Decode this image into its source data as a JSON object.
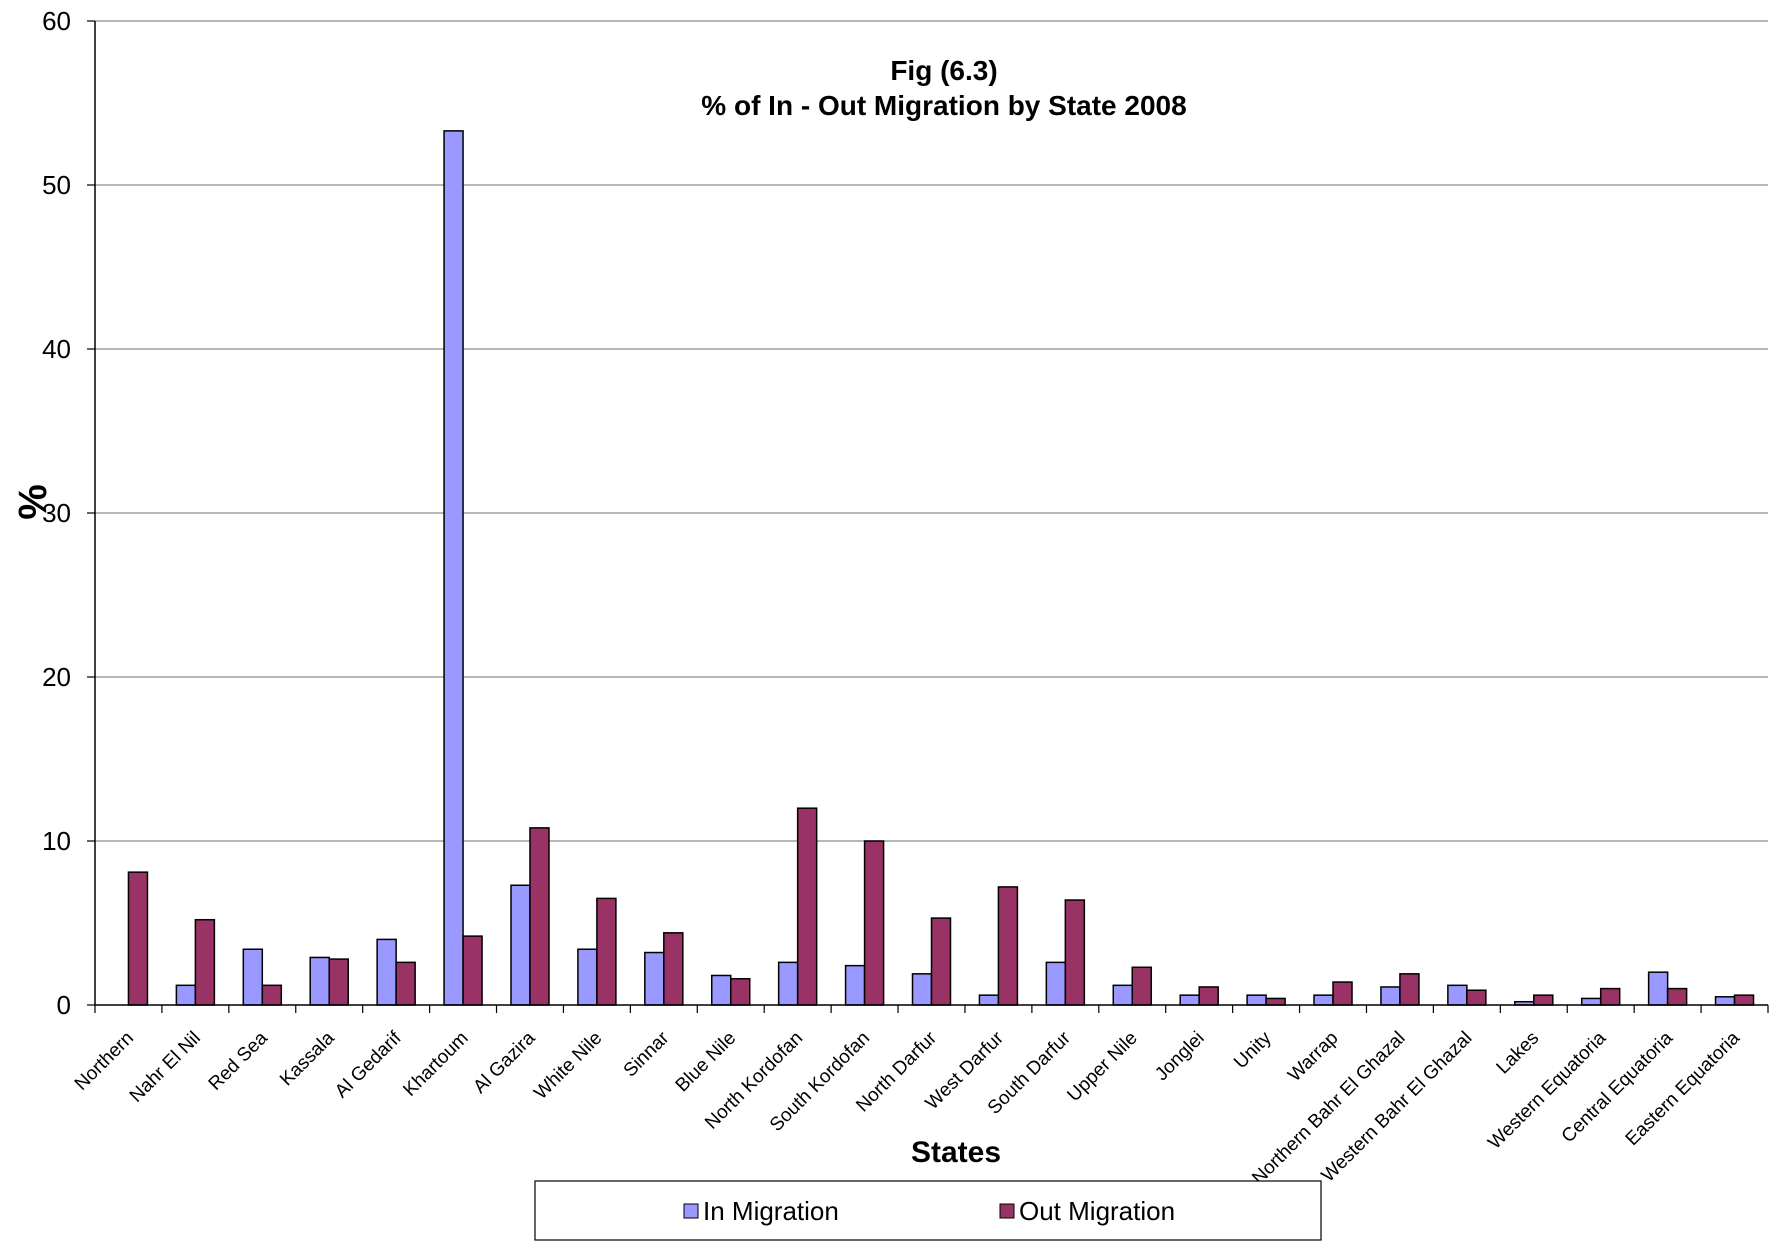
{
  "chart_data": {
    "type": "bar",
    "title_lines": [
      "Fig (6.3)",
      "% of In - Out Migration by State 2008"
    ],
    "xlabel": "States",
    "ylabel": "%",
    "ylim": [
      0,
      60
    ],
    "yticks": [
      0,
      10,
      20,
      30,
      40,
      50,
      60
    ],
    "grid": true,
    "legend_position": "bottom",
    "categories": [
      "Northern",
      "Nahr El Nil",
      "Red Sea",
      "Kassala",
      "Al Gedarif",
      "Khartoum",
      "Al Gazira",
      "White Nile",
      "Sinnar",
      "Blue Nile",
      "North Kordofan",
      "South Kordofan",
      "North Darfur",
      "West Darfur",
      "South  Darfur",
      "Upper Nile",
      "Jonglei",
      "Unity",
      "Warrap",
      "Northern Bahr El Ghazal",
      "Western Bahr El Ghazal",
      "Lakes",
      "Western Equatoria",
      "Central Equatoria",
      "Eastern Equatoria"
    ],
    "series": [
      {
        "name": "In Migration",
        "color": "#9999ff",
        "values": [
          0,
          1.2,
          3.4,
          2.9,
          4.0,
          53.3,
          7.3,
          3.4,
          3.2,
          1.8,
          2.6,
          2.4,
          1.9,
          0.6,
          2.6,
          1.2,
          0.6,
          0.6,
          0.6,
          1.1,
          1.2,
          0.2,
          0.4,
          2.0,
          0.5
        ]
      },
      {
        "name": "Out Migration",
        "color": "#993366",
        "values": [
          8.1,
          5.2,
          1.2,
          2.8,
          2.6,
          4.2,
          10.8,
          6.5,
          4.4,
          1.6,
          12.0,
          10.0,
          5.3,
          7.2,
          6.4,
          2.3,
          1.1,
          0.4,
          1.4,
          1.9,
          0.9,
          0.6,
          1.0,
          1.0,
          0.6
        ]
      }
    ]
  }
}
